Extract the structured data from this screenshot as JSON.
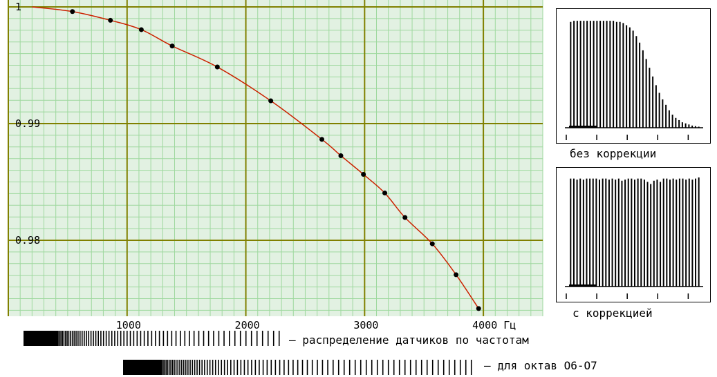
{
  "chart_data": [
    {
      "type": "line",
      "xlabel": "",
      "ylabel": "",
      "x_unit": "Гц",
      "xlim": [
        0,
        4500
      ],
      "ylim": [
        0.9735,
        1.0
      ],
      "x_ticks": [
        1000,
        2000,
        3000,
        4000
      ],
      "x_tick_labels": [
        "1000",
        "2000",
        "3000",
        "4000"
      ],
      "y_ticks": [
        1.0,
        0.99,
        0.98
      ],
      "y_tick_labels": [
        "1",
        "0.99",
        "0.98"
      ],
      "grid": true,
      "series": [
        {
          "color": "#cc2200",
          "marker_color": "#000000",
          "points": [
            {
              "x": 540,
              "y": 0.9996
            },
            {
              "x": 860,
              "y": 0.99885
            },
            {
              "x": 1120,
              "y": 0.99805
            },
            {
              "x": 1380,
              "y": 0.99665
            },
            {
              "x": 1760,
              "y": 0.99485
            },
            {
              "x": 2210,
              "y": 0.99195
            },
            {
              "x": 2640,
              "y": 0.98865
            },
            {
              "x": 2800,
              "y": 0.98725
            },
            {
              "x": 2990,
              "y": 0.98565
            },
            {
              "x": 3170,
              "y": 0.98405
            },
            {
              "x": 3340,
              "y": 0.98195
            },
            {
              "x": 3570,
              "y": 0.9797
            },
            {
              "x": 3770,
              "y": 0.97705
            },
            {
              "x": 3960,
              "y": 0.97415
            }
          ],
          "curve": [
            {
              "x": 200,
              "y": 1.0
            },
            {
              "x": 540,
              "y": 0.9996
            },
            {
              "x": 860,
              "y": 0.99885
            },
            {
              "x": 1120,
              "y": 0.99805
            },
            {
              "x": 1380,
              "y": 0.99665
            },
            {
              "x": 1760,
              "y": 0.99485
            },
            {
              "x": 2210,
              "y": 0.99195
            },
            {
              "x": 2640,
              "y": 0.98865
            },
            {
              "x": 2800,
              "y": 0.98725
            },
            {
              "x": 2990,
              "y": 0.98565
            },
            {
              "x": 3170,
              "y": 0.98405
            },
            {
              "x": 3340,
              "y": 0.98195
            },
            {
              "x": 3570,
              "y": 0.9797
            },
            {
              "x": 3770,
              "y": 0.97705
            },
            {
              "x": 3960,
              "y": 0.97415
            }
          ]
        }
      ]
    },
    {
      "type": "bar",
      "title": "без коррекции",
      "values": [
        0.97,
        0.98,
        0.98,
        0.98,
        0.98,
        0.98,
        0.98,
        0.98,
        0.98,
        0.98,
        0.98,
        0.98,
        0.98,
        0.98,
        0.97,
        0.97,
        0.96,
        0.94,
        0.92,
        0.89,
        0.84,
        0.78,
        0.71,
        0.63,
        0.55,
        0.47,
        0.39,
        0.32,
        0.26,
        0.21,
        0.16,
        0.12,
        0.09,
        0.07,
        0.05,
        0.04,
        0.03,
        0.02,
        0.015,
        0.01
      ],
      "color": "#000000"
    },
    {
      "type": "bar",
      "title": "с коррекцией",
      "values": [
        0.99,
        0.99,
        0.98,
        0.99,
        0.98,
        0.99,
        0.99,
        0.99,
        0.99,
        0.98,
        0.99,
        0.99,
        0.98,
        0.99,
        0.98,
        0.99,
        0.97,
        0.98,
        0.99,
        0.99,
        0.98,
        0.99,
        0.99,
        0.98,
        0.96,
        0.94,
        0.97,
        0.98,
        0.96,
        0.99,
        0.99,
        0.98,
        0.99,
        0.98,
        0.99,
        0.99,
        0.98,
        0.99,
        0.98,
        0.99,
        1.0
      ],
      "color": "#000000"
    }
  ],
  "legends": {
    "distribution": "распределение датчиков по частотам",
    "octaves": "для октав О6-О7"
  },
  "colors": {
    "plot_bg": "#e2f1e2",
    "minor_grid": "#9ed89e",
    "major_grid": "#808000",
    "curve": "#cc2200"
  }
}
